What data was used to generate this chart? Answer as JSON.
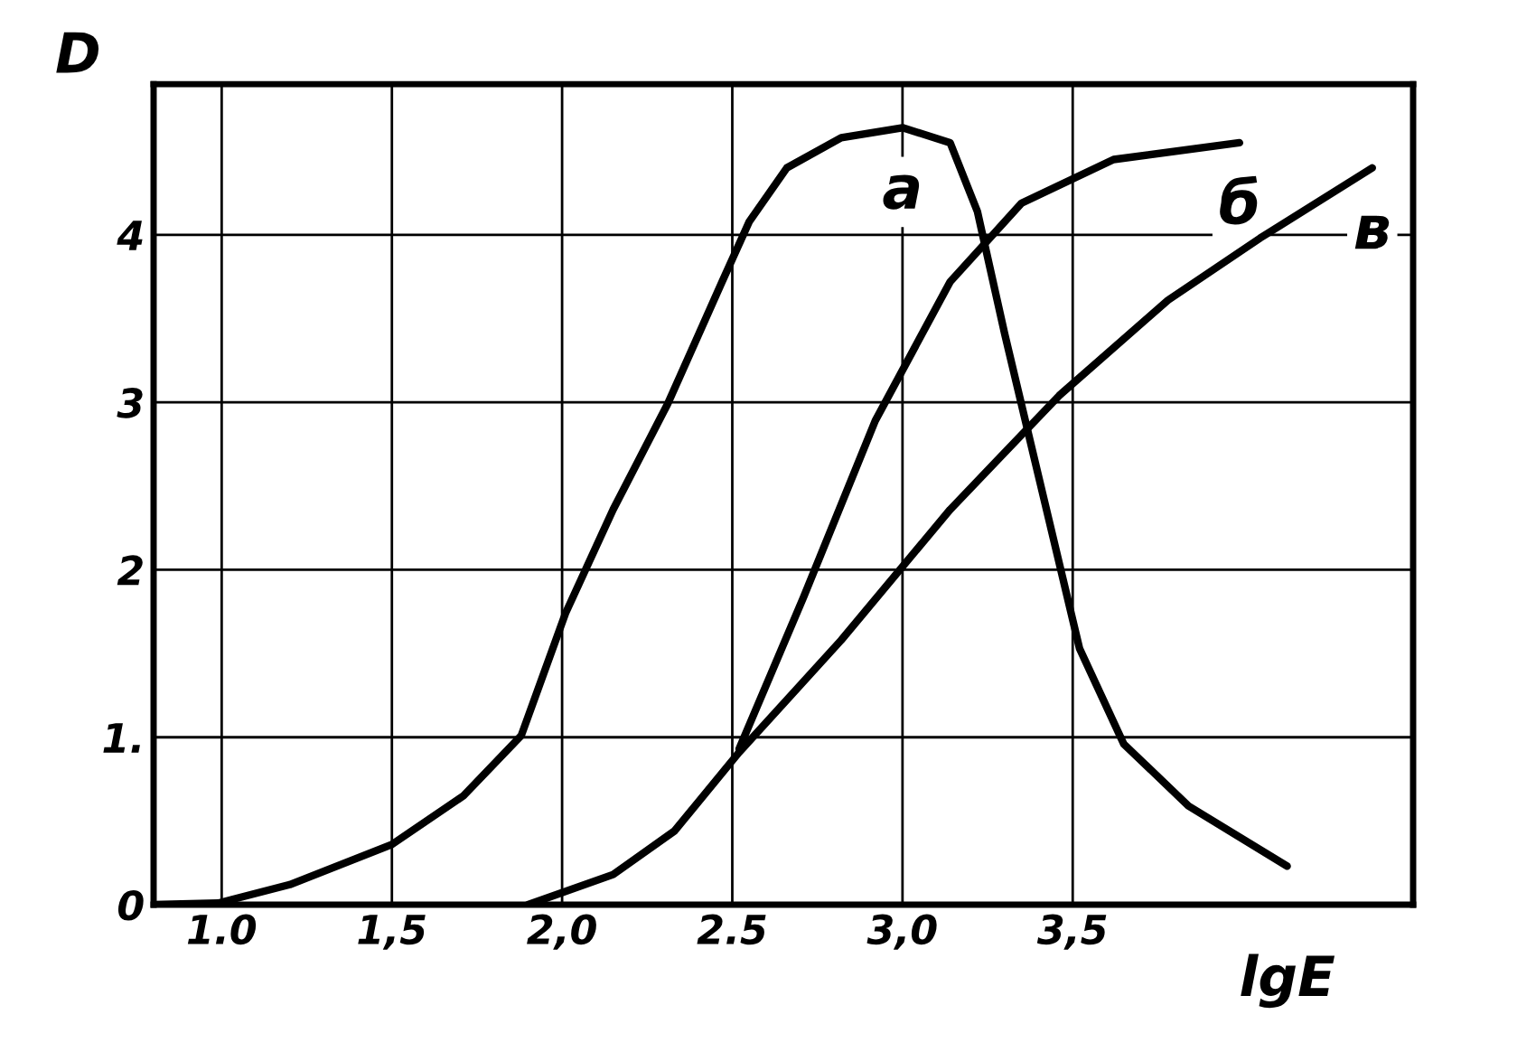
{
  "chart_data": {
    "type": "line",
    "xlabel": "lgE",
    "ylabel": "D",
    "xlim": [
      0.8,
      4.5
    ],
    "ylim": [
      0,
      4.9
    ],
    "xticks": [
      {
        "value": 1.0,
        "label": "1.0"
      },
      {
        "value": 1.5,
        "label": "1,5"
      },
      {
        "value": 2.0,
        "label": "2,0"
      },
      {
        "value": 2.5,
        "label": "2.5"
      },
      {
        "value": 3.0,
        "label": "3,0"
      },
      {
        "value": 3.5,
        "label": "3,5"
      }
    ],
    "yticks": [
      0,
      {
        "value": 1,
        "label": "1."
      },
      2,
      3,
      4
    ],
    "grid": true,
    "legend": false,
    "marker": "none",
    "line_style": "solid",
    "series": [
      {
        "name": "а",
        "color": "#000000",
        "x": [
          0.8,
          0.99,
          1.2,
          1.5,
          1.71,
          1.88,
          2.01,
          2.15,
          2.31,
          2.47,
          2.55,
          2.66,
          2.82,
          3.0,
          3.14,
          3.22,
          3.3,
          3.41,
          3.52,
          3.65,
          3.84,
          4.13
        ],
        "values": [
          0,
          0.01,
          0.12,
          0.36,
          0.65,
          1.01,
          1.74,
          2.36,
          2.99,
          3.72,
          4.08,
          4.4,
          4.58,
          4.64,
          4.55,
          4.14,
          3.41,
          2.47,
          1.53,
          0.96,
          0.59,
          0.23
        ]
      },
      {
        "name": "б",
        "color": "#000000",
        "x": [
          2.52,
          2.71,
          2.92,
          3.14,
          3.35,
          3.62,
          3.99
        ],
        "values": [
          0.93,
          1.84,
          2.89,
          3.72,
          4.19,
          4.45,
          4.55
        ]
      },
      {
        "name": "в",
        "color": "#000000",
        "x": [
          1.9,
          2.15,
          2.33,
          2.52,
          2.82,
          3.14,
          3.46,
          3.78,
          4.05,
          4.38
        ],
        "values": [
          0,
          0.18,
          0.44,
          0.91,
          1.58,
          2.36,
          3.04,
          3.61,
          3.98,
          4.4
        ]
      }
    ]
  }
}
